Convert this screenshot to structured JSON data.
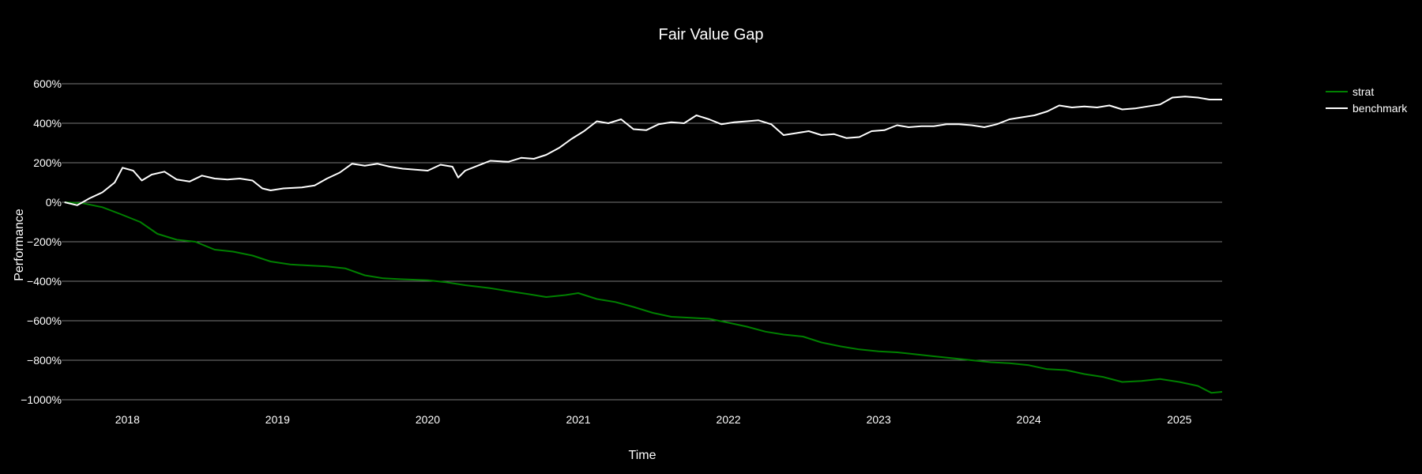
{
  "chart_data": {
    "type": "line",
    "title": "Fair Value Gap",
    "xlabel": "Time",
    "ylabel": "Performance",
    "ylim": [
      -1000,
      600
    ],
    "xlim": [
      "2017-07-25",
      "2025-04-15"
    ],
    "x_ticks": [
      "2018",
      "2019",
      "2020",
      "2021",
      "2022",
      "2023",
      "2024",
      "2025"
    ],
    "y_ticks": [
      "600%",
      "400%",
      "200%",
      "0%",
      "−200%",
      "−400%",
      "−600%",
      "−800%",
      "−1000%"
    ],
    "y_tick_values": [
      600,
      400,
      200,
      0,
      -200,
      -400,
      -600,
      -800,
      -1000
    ],
    "grid": "horizontal",
    "legend_position": "top-right",
    "series": [
      {
        "name": "strat",
        "color": "#008000",
        "points": [
          [
            "2017-08-01",
            0
          ],
          [
            "2017-09-15",
            -5
          ],
          [
            "2017-11-01",
            -25
          ],
          [
            "2017-12-15",
            -60
          ],
          [
            "2018-02-01",
            -100
          ],
          [
            "2018-03-15",
            -160
          ],
          [
            "2018-05-01",
            -190
          ],
          [
            "2018-06-15",
            -200
          ],
          [
            "2018-08-01",
            -240
          ],
          [
            "2018-09-15",
            -250
          ],
          [
            "2018-11-01",
            -270
          ],
          [
            "2018-12-15",
            -300
          ],
          [
            "2019-02-01",
            -315
          ],
          [
            "2019-03-15",
            -320
          ],
          [
            "2019-05-01",
            -325
          ],
          [
            "2019-06-15",
            -335
          ],
          [
            "2019-08-01",
            -370
          ],
          [
            "2019-09-15",
            -385
          ],
          [
            "2019-11-01",
            -390
          ],
          [
            "2020-01-01",
            -395
          ],
          [
            "2020-02-15",
            -405
          ],
          [
            "2020-04-01",
            -420
          ],
          [
            "2020-06-01",
            -435
          ],
          [
            "2020-07-15",
            -450
          ],
          [
            "2020-09-01",
            -465
          ],
          [
            "2020-10-15",
            -480
          ],
          [
            "2020-12-01",
            -470
          ],
          [
            "2021-01-01",
            -460
          ],
          [
            "2021-02-15",
            -490
          ],
          [
            "2021-04-01",
            -505
          ],
          [
            "2021-05-15",
            -530
          ],
          [
            "2021-07-01",
            -560
          ],
          [
            "2021-08-15",
            -580
          ],
          [
            "2021-10-01",
            -585
          ],
          [
            "2021-11-15",
            -590
          ],
          [
            "2022-01-01",
            -610
          ],
          [
            "2022-02-15",
            -630
          ],
          [
            "2022-04-01",
            -655
          ],
          [
            "2022-05-15",
            -670
          ],
          [
            "2022-07-01",
            -680
          ],
          [
            "2022-08-15",
            -710
          ],
          [
            "2022-10-01",
            -730
          ],
          [
            "2022-11-15",
            -745
          ],
          [
            "2023-01-01",
            -755
          ],
          [
            "2023-02-15",
            -760
          ],
          [
            "2023-04-01",
            -770
          ],
          [
            "2023-05-15",
            -780
          ],
          [
            "2023-07-01",
            -790
          ],
          [
            "2023-08-15",
            -800
          ],
          [
            "2023-10-01",
            -810
          ],
          [
            "2023-11-15",
            -815
          ],
          [
            "2024-01-01",
            -825
          ],
          [
            "2024-02-15",
            -845
          ],
          [
            "2024-04-01",
            -850
          ],
          [
            "2024-05-15",
            -870
          ],
          [
            "2024-07-01",
            -885
          ],
          [
            "2024-08-15",
            -910
          ],
          [
            "2024-10-01",
            -905
          ],
          [
            "2024-11-15",
            -895
          ],
          [
            "2025-01-01",
            -910
          ],
          [
            "2025-02-15",
            -930
          ],
          [
            "2025-03-20",
            -965
          ],
          [
            "2025-04-15",
            -960
          ]
        ]
      },
      {
        "name": "benchmark",
        "color": "#ffffff",
        "points": [
          [
            "2017-08-01",
            0
          ],
          [
            "2017-09-01",
            -15
          ],
          [
            "2017-10-01",
            20
          ],
          [
            "2017-11-01",
            50
          ],
          [
            "2017-12-01",
            100
          ],
          [
            "2017-12-20",
            175
          ],
          [
            "2018-01-15",
            160
          ],
          [
            "2018-02-05",
            110
          ],
          [
            "2018-03-01",
            140
          ],
          [
            "2018-04-01",
            155
          ],
          [
            "2018-05-01",
            115
          ],
          [
            "2018-06-01",
            105
          ],
          [
            "2018-07-01",
            135
          ],
          [
            "2018-08-01",
            120
          ],
          [
            "2018-09-01",
            115
          ],
          [
            "2018-10-01",
            120
          ],
          [
            "2018-11-01",
            110
          ],
          [
            "2018-11-25",
            70
          ],
          [
            "2018-12-15",
            60
          ],
          [
            "2019-01-15",
            70
          ],
          [
            "2019-03-01",
            75
          ],
          [
            "2019-04-01",
            85
          ],
          [
            "2019-05-01",
            120
          ],
          [
            "2019-06-01",
            150
          ],
          [
            "2019-07-01",
            195
          ],
          [
            "2019-08-01",
            185
          ],
          [
            "2019-09-01",
            195
          ],
          [
            "2019-10-01",
            180
          ],
          [
            "2019-11-01",
            170
          ],
          [
            "2020-01-01",
            160
          ],
          [
            "2020-02-01",
            190
          ],
          [
            "2020-03-01",
            180
          ],
          [
            "2020-03-15",
            125
          ],
          [
            "2020-04-01",
            160
          ],
          [
            "2020-05-01",
            185
          ],
          [
            "2020-06-01",
            210
          ],
          [
            "2020-07-15",
            205
          ],
          [
            "2020-08-15",
            225
          ],
          [
            "2020-09-15",
            220
          ],
          [
            "2020-10-15",
            240
          ],
          [
            "2020-11-15",
            275
          ],
          [
            "2020-12-15",
            320
          ],
          [
            "2021-01-15",
            360
          ],
          [
            "2021-02-15",
            410
          ],
          [
            "2021-03-15",
            400
          ],
          [
            "2021-04-15",
            420
          ],
          [
            "2021-05-15",
            370
          ],
          [
            "2021-06-15",
            365
          ],
          [
            "2021-07-15",
            395
          ],
          [
            "2021-08-15",
            405
          ],
          [
            "2021-09-15",
            400
          ],
          [
            "2021-10-15",
            440
          ],
          [
            "2021-11-15",
            420
          ],
          [
            "2021-12-15",
            395
          ],
          [
            "2022-01-15",
            405
          ],
          [
            "2022-02-15",
            410
          ],
          [
            "2022-03-15",
            415
          ],
          [
            "2022-04-15",
            395
          ],
          [
            "2022-05-15",
            340
          ],
          [
            "2022-06-15",
            350
          ],
          [
            "2022-07-15",
            360
          ],
          [
            "2022-08-15",
            340
          ],
          [
            "2022-09-15",
            345
          ],
          [
            "2022-10-15",
            325
          ],
          [
            "2022-11-15",
            330
          ],
          [
            "2022-12-15",
            360
          ],
          [
            "2023-01-15",
            365
          ],
          [
            "2023-02-15",
            390
          ],
          [
            "2023-03-15",
            380
          ],
          [
            "2023-04-15",
            385
          ],
          [
            "2023-05-15",
            385
          ],
          [
            "2023-06-15",
            395
          ],
          [
            "2023-07-15",
            395
          ],
          [
            "2023-08-15",
            390
          ],
          [
            "2023-09-15",
            380
          ],
          [
            "2023-10-15",
            395
          ],
          [
            "2023-11-15",
            420
          ],
          [
            "2023-12-15",
            430
          ],
          [
            "2024-01-15",
            440
          ],
          [
            "2024-02-15",
            460
          ],
          [
            "2024-03-15",
            490
          ],
          [
            "2024-04-15",
            480
          ],
          [
            "2024-05-15",
            485
          ],
          [
            "2024-06-15",
            480
          ],
          [
            "2024-07-15",
            490
          ],
          [
            "2024-08-15",
            470
          ],
          [
            "2024-09-15",
            475
          ],
          [
            "2024-10-15",
            485
          ],
          [
            "2024-11-15",
            495
          ],
          [
            "2024-12-15",
            530
          ],
          [
            "2025-01-15",
            535
          ],
          [
            "2025-02-15",
            530
          ],
          [
            "2025-03-15",
            520
          ],
          [
            "2025-04-15",
            520
          ]
        ]
      }
    ]
  }
}
